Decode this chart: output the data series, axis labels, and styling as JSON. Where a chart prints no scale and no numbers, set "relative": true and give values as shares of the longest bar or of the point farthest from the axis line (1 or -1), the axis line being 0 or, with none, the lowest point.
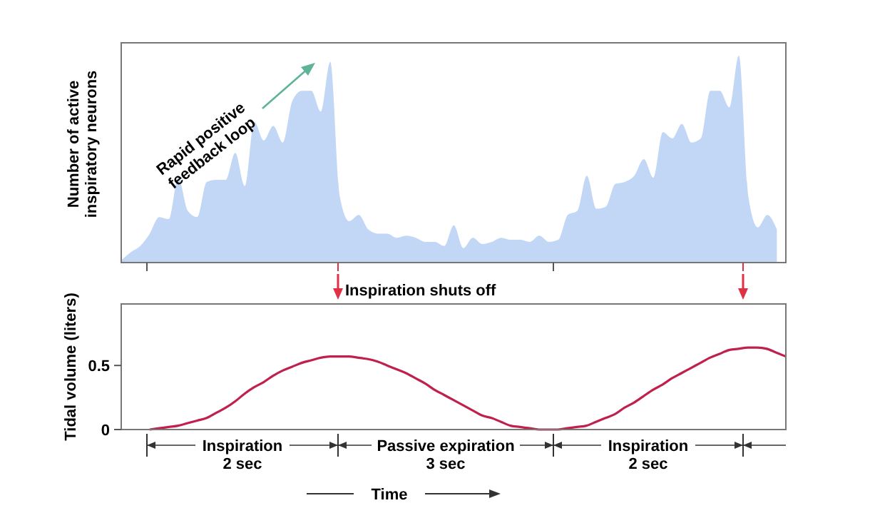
{
  "chart_data": [
    {
      "type": "area",
      "relative": true,
      "ylabel": "Number of active\ninspiratory neurons",
      "color": "#c2d6f6",
      "categories": [
        null,
        null,
        null,
        null,
        null,
        null,
        null,
        null,
        null,
        null,
        null,
        null,
        null,
        null,
        null,
        null,
        null,
        null,
        null,
        null,
        null,
        null,
        null,
        null,
        null,
        null,
        null,
        null,
        null,
        null,
        null,
        null,
        null,
        null,
        null,
        null,
        null,
        null,
        null,
        null,
        null,
        null,
        null,
        null,
        null,
        null,
        null,
        null,
        null,
        null,
        null,
        null,
        null,
        null,
        null,
        null,
        null,
        null,
        null,
        null,
        null,
        null,
        null,
        null,
        null,
        null,
        null,
        null,
        null,
        null
      ],
      "values": [
        0.01,
        0.05,
        0.08,
        0.14,
        0.22,
        0.21,
        0.41,
        0.25,
        0.22,
        0.39,
        0.4,
        0.4,
        0.53,
        0.37,
        0.68,
        0.59,
        0.66,
        0.58,
        0.78,
        0.83,
        0.83,
        0.73,
        0.97,
        0.32,
        0.2,
        0.23,
        0.16,
        0.14,
        0.14,
        0.12,
        0.13,
        0.12,
        0.1,
        0.1,
        0.08,
        0.18,
        0.07,
        0.12,
        0.09,
        0.1,
        0.12,
        0.11,
        0.11,
        0.1,
        0.13,
        0.1,
        0.11,
        0.23,
        0.25,
        0.42,
        0.26,
        0.27,
        0.38,
        0.39,
        0.42,
        0.5,
        0.41,
        0.63,
        0.6,
        0.67,
        0.58,
        0.6,
        0.83,
        0.83,
        0.75,
        1,
        0.32,
        0.17,
        0.23,
        0.16
      ],
      "annotations": [
        "Rapid positive\nfeedback loop"
      ]
    },
    {
      "type": "line",
      "ylabel": "Tidal volume (liters)",
      "color": "#c0204c",
      "ylim": [
        0,
        0.98
      ],
      "yticks": [
        0,
        0.5
      ],
      "categories": [
        null,
        null,
        null,
        null,
        null,
        null,
        null,
        null,
        null,
        null,
        null,
        null,
        null,
        null,
        null,
        null,
        null,
        null,
        null,
        null,
        null,
        null,
        null,
        null,
        null,
        null,
        null,
        null,
        null,
        null,
        null,
        null,
        null,
        null,
        null,
        null,
        null,
        null,
        null,
        null,
        null,
        null,
        null,
        null,
        null,
        null,
        null,
        null,
        null,
        null,
        null,
        null,
        null,
        null,
        null,
        null,
        null,
        null,
        null,
        null,
        null,
        null,
        null,
        null,
        null,
        null,
        null,
        null,
        null,
        null,
        null
      ],
      "values": [
        null,
        null,
        null,
        0,
        0.01,
        0.02,
        0.03,
        0.05,
        0.07,
        0.09,
        0.13,
        0.17,
        0.22,
        0.28,
        0.33,
        0.37,
        0.42,
        0.46,
        0.49,
        0.52,
        0.54,
        0.56,
        0.57,
        0.57,
        0.57,
        0.56,
        0.55,
        0.53,
        0.5,
        0.47,
        0.44,
        0.4,
        0.36,
        0.31,
        0.27,
        0.23,
        0.19,
        0.15,
        0.11,
        0.09,
        0.06,
        0.03,
        0.02,
        0.01,
        0,
        0,
        0,
        0.01,
        0.02,
        0.03,
        0.06,
        0.09,
        0.12,
        0.17,
        0.21,
        0.26,
        0.31,
        0.35,
        0.4,
        0.44,
        0.48,
        0.52,
        0.56,
        0.59,
        0.62,
        0.63,
        0.64,
        0.64,
        0.63,
        0.6,
        0.57
      ],
      "annotations": [
        "Inspiration shuts off",
        "Inspiration\n2 sec",
        "Passive expiration\n3 sec",
        "Inspiration\n2 sec",
        "Time"
      ]
    }
  ]
}
